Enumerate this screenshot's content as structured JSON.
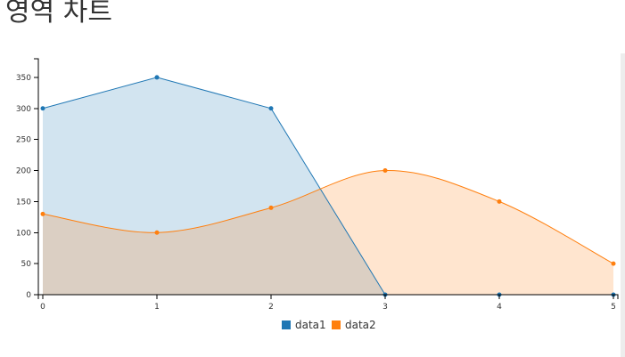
{
  "title": "영역 차트",
  "chart_data": {
    "type": "area",
    "x": [
      0,
      1,
      2,
      3,
      4,
      5
    ],
    "xlim": [
      0,
      5
    ],
    "ylim": [
      0,
      380
    ],
    "yticks": [
      0,
      50,
      100,
      150,
      200,
      250,
      300,
      350
    ],
    "grid": false,
    "legend_position": "bottom-center",
    "series": [
      {
        "name": "data1",
        "values": [
          300,
          350,
          300,
          0,
          0,
          0
        ],
        "color": "#1f77b4",
        "curve": "linear"
      },
      {
        "name": "data2",
        "values": [
          130,
          100,
          140,
          200,
          150,
          50
        ],
        "color": "#ff7f0e",
        "curve": "spline"
      }
    ]
  }
}
